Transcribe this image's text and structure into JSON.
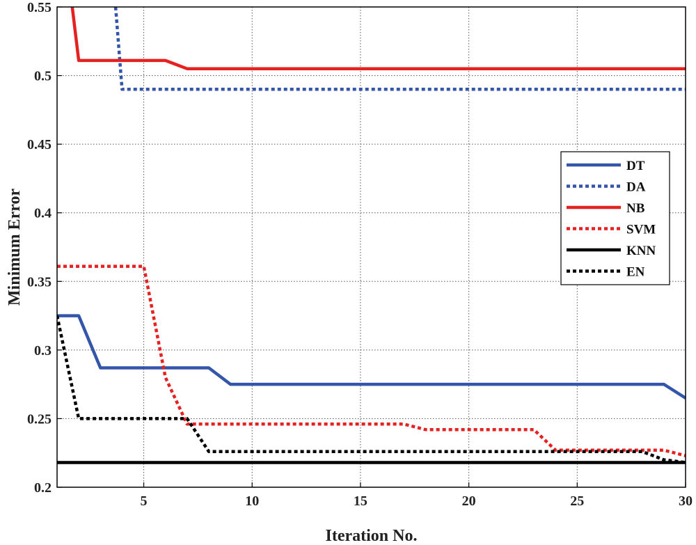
{
  "chart_data": {
    "type": "line",
    "xlabel": "Iteration No.",
    "ylabel": "Minimum Error",
    "xlim": [
      1,
      30
    ],
    "ylim": [
      0.2,
      0.55
    ],
    "xticks": [
      5,
      10,
      15,
      20,
      25,
      30
    ],
    "yticks": [
      0.2,
      0.25,
      0.3,
      0.35,
      0.4,
      0.45,
      0.5,
      0.55
    ],
    "grid": "dotted, major",
    "legend_position": "right",
    "series": [
      {
        "name": "DT",
        "color": "#3355aa",
        "style": "solid",
        "x": [
          1,
          2,
          3,
          8,
          9,
          29,
          30
        ],
        "y": [
          0.325,
          0.325,
          0.287,
          0.287,
          0.275,
          0.275,
          0.265
        ]
      },
      {
        "name": "DA",
        "color": "#3355aa",
        "style": "dotted",
        "x": [
          3.7,
          4,
          30
        ],
        "y": [
          0.55,
          0.49,
          0.49
        ]
      },
      {
        "name": "NB",
        "color": "#e52222",
        "style": "solid",
        "x": [
          1.7,
          2,
          6,
          7,
          30
        ],
        "y": [
          0.55,
          0.511,
          0.511,
          0.505,
          0.505
        ]
      },
      {
        "name": "SVM",
        "color": "#e52222",
        "style": "dotted",
        "x": [
          1,
          5,
          6,
          7,
          17,
          18,
          23,
          24,
          29,
          30
        ],
        "y": [
          0.361,
          0.361,
          0.28,
          0.246,
          0.246,
          0.242,
          0.242,
          0.227,
          0.227,
          0.223
        ]
      },
      {
        "name": "KNN",
        "color": "#000000",
        "style": "solid",
        "x": [
          1,
          30
        ],
        "y": [
          0.218,
          0.218
        ]
      },
      {
        "name": "EN",
        "color": "#000000",
        "style": "dotted",
        "x": [
          1,
          2,
          7,
          8,
          28,
          29,
          30
        ],
        "y": [
          0.325,
          0.25,
          0.25,
          0.226,
          0.226,
          0.22,
          0.218
        ]
      }
    ]
  }
}
